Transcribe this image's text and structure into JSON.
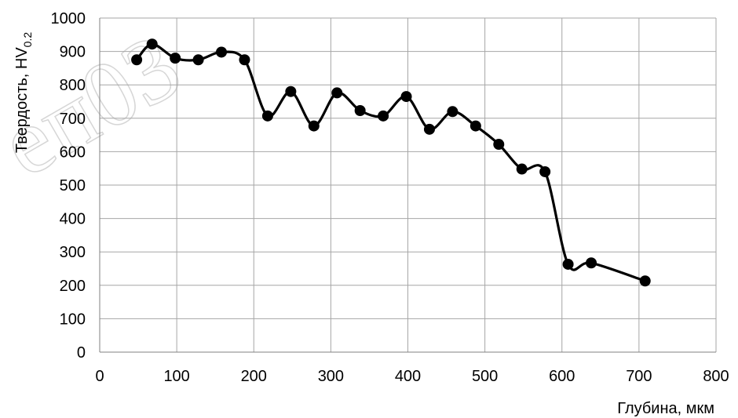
{
  "chart_data": {
    "type": "line",
    "title": "",
    "xlabel": "Глубина, мкм",
    "ylabel": "Твердость, HV",
    "ylabel_subscript": "0.2",
    "xlim": [
      0,
      800
    ],
    "ylim": [
      0,
      1000
    ],
    "x_ticks": [
      0,
      100,
      200,
      300,
      400,
      500,
      600,
      700,
      800
    ],
    "y_ticks": [
      0,
      100,
      200,
      300,
      400,
      500,
      600,
      700,
      800,
      900,
      1000
    ],
    "grid": true,
    "series": [
      {
        "color": "#000000",
        "marker": "circle",
        "smooth": true,
        "x": [
          48,
          68,
          98,
          128,
          158,
          188,
          218,
          248,
          278,
          308,
          338,
          368,
          398,
          428,
          458,
          488,
          518,
          548,
          578,
          608,
          638,
          708
        ],
        "y": [
          875,
          922,
          880,
          875,
          898,
          875,
          707,
          780,
          677,
          776,
          723,
          707,
          765,
          667,
          720,
          677,
          622,
          548,
          540,
          263,
          267,
          213
        ]
      }
    ]
  },
  "watermark": "еп03"
}
